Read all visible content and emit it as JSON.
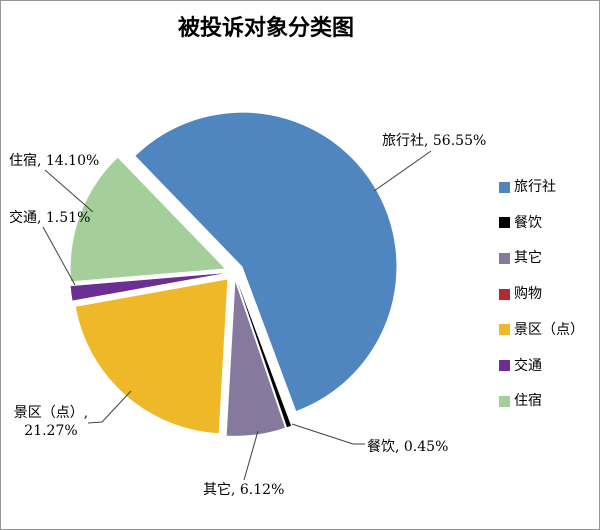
{
  "title": "被投诉对象分类图",
  "frame": {
    "background": "#FFFFFF",
    "border_color": "#969696",
    "leader_line_color": "#404040",
    "text_color": "#000000"
  },
  "chart_data": {
    "type": "pie",
    "title": "被投诉对象分类图",
    "value_format": "percent",
    "direction": "clockwise",
    "start_angle_deg_from_12": -44,
    "exploded": true,
    "grid": false,
    "legend_position": "right",
    "slices": [
      {
        "name": "旅行社",
        "value": 56.55,
        "color": "#4F86C0",
        "label_lines": [
          "旅行社, 56.55%"
        ]
      },
      {
        "name": "餐饮",
        "value": 0.45,
        "color": "#000000",
        "label_lines": [
          "餐饮, 0.45%"
        ]
      },
      {
        "name": "其它",
        "value": 6.12,
        "color": "#857A9E",
        "label_lines": [
          "其它, 6.12%"
        ]
      },
      {
        "name": "购物",
        "value": 0.0,
        "color": "#B02C31",
        "label_lines": []
      },
      {
        "name": "景区（点）",
        "value": 21.27,
        "color": "#EFB829",
        "label_lines": [
          "景区（点）,",
          "21.27%"
        ]
      },
      {
        "name": "交通",
        "value": 1.51,
        "color": "#6B2E93",
        "label_lines": [
          "交通, 1.51%"
        ]
      },
      {
        "name": "住宿",
        "value": 14.1,
        "color": "#A5CF9A",
        "label_lines": [
          "住宿, 14.10%"
        ]
      }
    ]
  }
}
